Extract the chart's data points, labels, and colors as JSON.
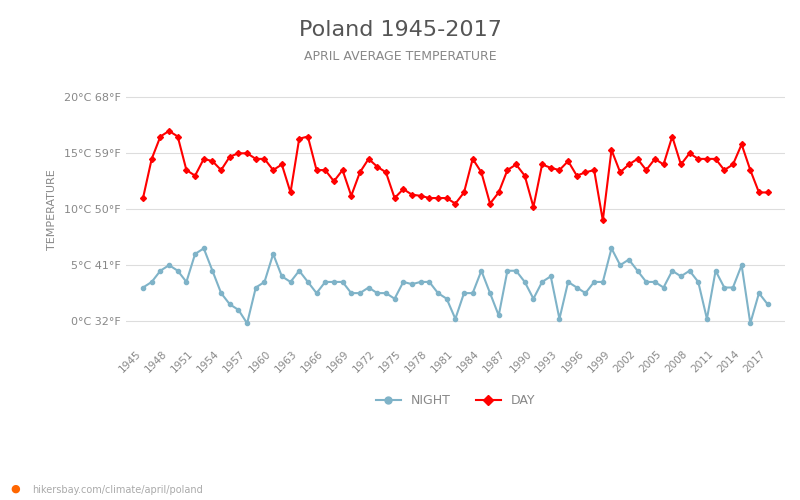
{
  "title": "Poland 1945-2017",
  "subtitle": "APRIL AVERAGE TEMPERATURE",
  "ylabel": "TEMPERATURE",
  "watermark": "hikersbay.com/climate/april/poland",
  "years": [
    1945,
    1946,
    1947,
    1948,
    1949,
    1950,
    1951,
    1952,
    1953,
    1954,
    1955,
    1956,
    1957,
    1958,
    1959,
    1960,
    1961,
    1962,
    1963,
    1964,
    1965,
    1966,
    1967,
    1968,
    1969,
    1970,
    1971,
    1972,
    1973,
    1974,
    1975,
    1976,
    1977,
    1978,
    1979,
    1980,
    1981,
    1982,
    1983,
    1984,
    1985,
    1986,
    1987,
    1988,
    1989,
    1990,
    1991,
    1992,
    1993,
    1994,
    1995,
    1996,
    1997,
    1998,
    1999,
    2000,
    2001,
    2002,
    2003,
    2004,
    2005,
    2006,
    2007,
    2008,
    2009,
    2010,
    2011,
    2012,
    2013,
    2014,
    2015,
    2016,
    2017
  ],
  "day": [
    11.0,
    14.5,
    16.5,
    17.0,
    16.5,
    13.5,
    13.0,
    14.5,
    14.3,
    13.5,
    14.7,
    15.0,
    15.0,
    14.5,
    14.5,
    13.5,
    14.0,
    11.5,
    16.3,
    16.5,
    13.5,
    13.5,
    12.5,
    13.5,
    11.2,
    13.3,
    14.5,
    13.8,
    13.3,
    11.0,
    11.8,
    11.3,
    11.2,
    11.0,
    11.0,
    11.0,
    10.5,
    11.5,
    14.5,
    13.3,
    10.5,
    11.5,
    13.5,
    14.0,
    13.0,
    10.2,
    14.0,
    13.7,
    13.5,
    14.3,
    13.0,
    13.3,
    13.5,
    9.0,
    15.3,
    13.3,
    14.0,
    14.5,
    13.5,
    14.5,
    14.0,
    16.5,
    14.0,
    15.0,
    14.5,
    14.5,
    14.5,
    13.5,
    14.0,
    15.8,
    13.5,
    11.5,
    11.5
  ],
  "night": [
    3.0,
    3.5,
    4.5,
    5.0,
    4.5,
    3.5,
    6.0,
    6.5,
    4.5,
    2.5,
    1.5,
    1.0,
    -0.2,
    3.0,
    3.5,
    6.0,
    4.0,
    3.5,
    4.5,
    3.5,
    2.5,
    3.5,
    3.5,
    3.5,
    2.5,
    2.5,
    3.0,
    2.5,
    2.5,
    2.0,
    3.5,
    3.3,
    3.5,
    3.5,
    2.5,
    2.0,
    0.2,
    2.5,
    2.5,
    4.5,
    2.5,
    0.5,
    4.5,
    4.5,
    3.5,
    2.0,
    3.5,
    4.0,
    0.2,
    3.5,
    3.0,
    2.5,
    3.5,
    3.5,
    6.5,
    5.0,
    5.5,
    4.5,
    3.5,
    3.5,
    3.0,
    4.5,
    4.0,
    4.5,
    3.5,
    0.2,
    4.5,
    3.0,
    3.0,
    5.0,
    -0.2,
    2.5,
    1.5
  ],
  "day_color": "#ff0000",
  "night_color": "#7fb3c8",
  "bg_color": "#ffffff",
  "grid_color": "#dddddd",
  "title_color": "#555555",
  "subtitle_color": "#888888",
  "axis_label_color": "#888888",
  "tick_label_color": "#888888",
  "ylim_celsius": [
    -2,
    22
  ],
  "yticks_celsius": [
    0,
    5,
    10,
    15,
    20
  ],
  "ytick_labels": [
    "0°C 32°F",
    "5°C 41°F",
    "10°C 50°F",
    "15°C 59°F",
    "20°C 68°F"
  ],
  "xtick_years": [
    1945,
    1948,
    1951,
    1954,
    1957,
    1960,
    1963,
    1966,
    1969,
    1972,
    1975,
    1978,
    1981,
    1984,
    1987,
    1990,
    1993,
    1996,
    1999,
    2002,
    2005,
    2008,
    2011,
    2014,
    2017
  ],
  "legend_night_label": "NIGHT",
  "legend_day_label": "DAY",
  "marker_size": 3,
  "line_width": 1.5
}
